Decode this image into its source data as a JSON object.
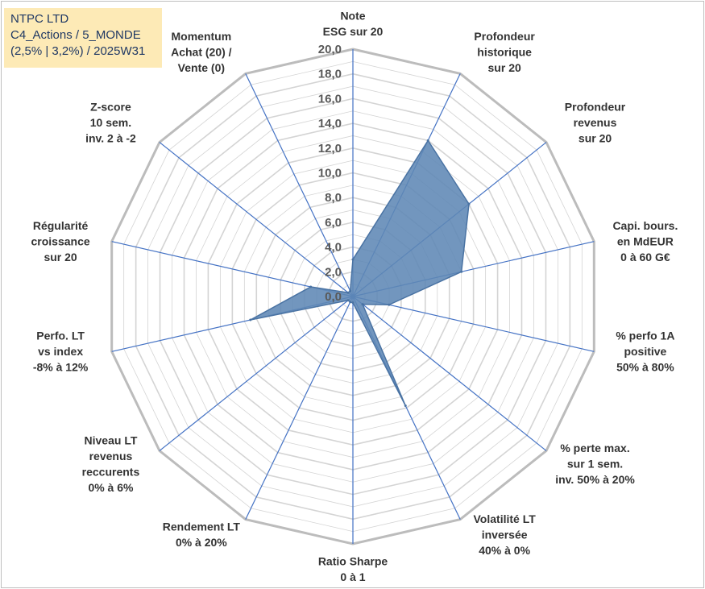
{
  "title_box": {
    "line1": "NTPC LTD",
    "line2": "C4_Actions / 5_MONDE",
    "line3": "(2,5% | 3,2%) / 2025W31"
  },
  "chart_data": {
    "type": "radar",
    "axes": [
      [
        "Note",
        "ESG sur 20"
      ],
      [
        "Profondeur",
        "historique",
        "sur 20"
      ],
      [
        "Profondeur",
        "revenus",
        "sur 20"
      ],
      [
        "Capi. bours.",
        "en MdEUR",
        "0 à 60 G€"
      ],
      [
        "% perfo 1A",
        "positive",
        "50% à 80%"
      ],
      [
        "% perte max.",
        "sur 1 sem.",
        "inv. 50% à 20%"
      ],
      [
        "Volatilité LT",
        "inversée",
        "40% à 0%"
      ],
      [
        "Ratio Sharpe",
        "0 à 1"
      ],
      [
        "Rendement LT",
        "0% à 20%"
      ],
      [
        "Niveau LT",
        "revenus",
        "reccurents",
        "0% à 6%"
      ],
      [
        "Perfo. LT",
        "vs index",
        "-8% à 12%"
      ],
      [
        "Régularité",
        "croissance",
        "sur 20"
      ],
      [
        "Z-score",
        "10 sem.",
        "inv. 2 à -2"
      ],
      [
        "Momentum",
        "Achat (20) /",
        "Vente (0)"
      ]
    ],
    "values": [
      3.0,
      14.0,
      12.0,
      9.0,
      3.0,
      1.0,
      9.8,
      0.5,
      0.5,
      0.5,
      8.5,
      3.5,
      0.5,
      0.5
    ],
    "rmin": 0,
    "rmax": 20,
    "ticks": [
      0,
      2,
      4,
      6,
      8,
      10,
      12,
      14,
      16,
      18,
      20
    ],
    "tick_labels": [
      "0,0",
      "2,0",
      "4,0",
      "6,0",
      "8,0",
      "10,0",
      "12,0",
      "14,0",
      "16,0",
      "18,0",
      "20,0"
    ],
    "colors": {
      "fill": "#5f87b5",
      "stroke": "#4a73a3",
      "axis": "#4472c4",
      "grid": "#d4d4d4",
      "outer_grid": "#bcbcbc"
    },
    "legend": "none"
  }
}
